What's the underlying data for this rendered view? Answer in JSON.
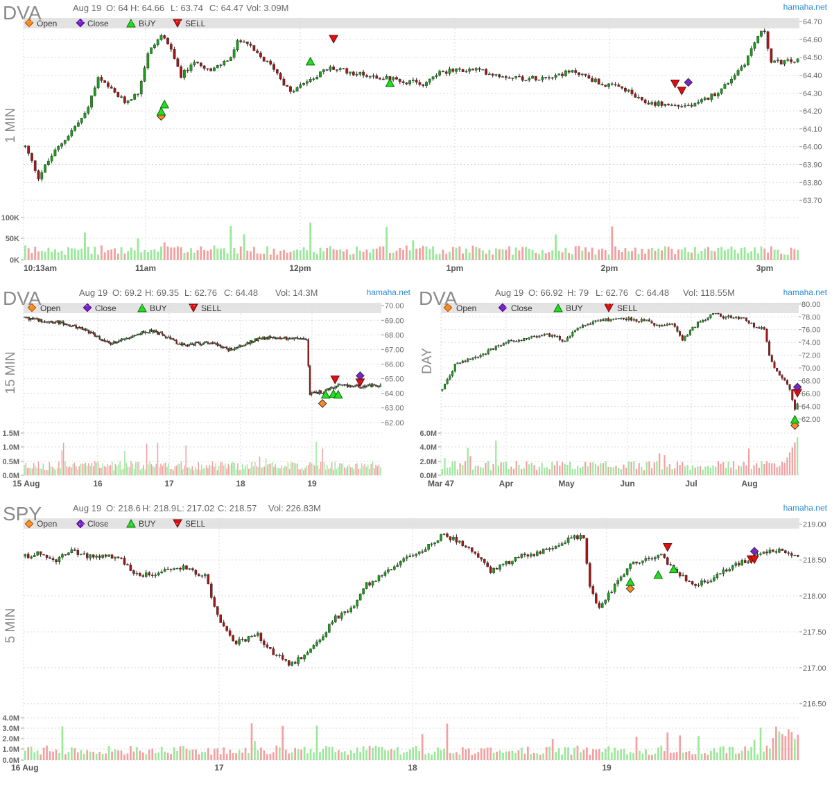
{
  "site": "hamaha.net",
  "legend": {
    "open": "Open",
    "close": "Close",
    "buy": "BUY",
    "sell": "SELL"
  },
  "colors": {
    "up": "#1a9e1a",
    "down": "#a01818",
    "vol_up": "#9be89b",
    "vol_down": "#f2a0a0",
    "buy": "#22dd22",
    "sell": "#e01010",
    "open_marker": "#ff8c1a",
    "close_marker": "#7b22cc"
  },
  "chart_data": [
    {
      "id": "dva_1min",
      "type": "candlestick",
      "symbol": "DVA",
      "timeframe": "1 MIN",
      "header": {
        "date": "Aug 19",
        "o": "O: 64",
        "h": "H: 64.66",
        "l": "L: 63.74",
        "c": "C: 64.47",
        "vol": "Vol: 3.09M"
      },
      "yticks": [
        "64.70",
        "64.60",
        "64.50",
        "64.40",
        "64.30",
        "64.20",
        "64.10",
        "64.00",
        "63.90",
        "63.80",
        "63.70"
      ],
      "ylim": [
        63.65,
        64.72
      ],
      "xticks": [
        "10:13am",
        "11am",
        "12pm",
        "1pm",
        "2pm",
        "3pm"
      ],
      "vticks": [
        "100K",
        "50K",
        "0K"
      ],
      "path": [
        [
          0,
          64.0
        ],
        [
          4,
          63.83
        ],
        [
          8,
          63.95
        ],
        [
          14,
          64.09
        ],
        [
          18,
          64.18
        ],
        [
          22,
          64.38
        ],
        [
          30,
          64.25
        ],
        [
          34,
          64.3
        ],
        [
          37,
          64.52
        ],
        [
          40,
          64.6
        ],
        [
          42,
          64.62
        ],
        [
          47,
          64.4
        ],
        [
          52,
          64.48
        ],
        [
          56,
          64.42
        ],
        [
          62,
          64.5
        ],
        [
          64,
          64.58
        ],
        [
          66,
          64.6
        ],
        [
          69,
          64.53
        ],
        [
          75,
          64.44
        ],
        [
          80,
          64.3
        ],
        [
          86,
          64.38
        ],
        [
          92,
          64.44
        ],
        [
          100,
          64.41
        ],
        [
          120,
          64.35
        ],
        [
          125,
          64.42
        ],
        [
          136,
          64.43
        ],
        [
          143,
          64.4
        ],
        [
          152,
          64.38
        ],
        [
          166,
          64.42
        ],
        [
          174,
          64.35
        ],
        [
          181,
          64.32
        ],
        [
          186,
          64.25
        ],
        [
          196,
          64.23
        ],
        [
          202,
          64.23
        ],
        [
          210,
          64.32
        ],
        [
          217,
          64.47
        ],
        [
          221,
          64.62
        ],
        [
          223,
          64.65
        ],
        [
          225,
          64.47
        ],
        [
          233,
          64.48
        ]
      ],
      "n": 234,
      "markers": [
        {
          "type": "open",
          "i": 41,
          "price": 64.17
        },
        {
          "type": "buy",
          "i": 41,
          "price": 64.2
        },
        {
          "type": "buy",
          "i": 42,
          "price": 64.24
        },
        {
          "type": "buy",
          "i": 86,
          "price": 64.48
        },
        {
          "type": "sell",
          "i": 93,
          "price": 64.6
        },
        {
          "type": "buy",
          "i": 110,
          "price": 64.36
        },
        {
          "type": "sell",
          "i": 196,
          "price": 64.35
        },
        {
          "type": "sell",
          "i": 198,
          "price": 64.31
        },
        {
          "type": "close",
          "i": 200,
          "price": 64.36
        }
      ]
    },
    {
      "id": "dva_15min",
      "type": "candlestick",
      "symbol": "DVA",
      "timeframe": "15 MIN",
      "header": {
        "date": "Aug 19",
        "o": "O: 69.2",
        "h": "H: 69.35",
        "l": "L: 62.76",
        "c": "C: 64.48",
        "vol": "Vol: 14.3M"
      },
      "yticks": [
        "70.00",
        "69.00",
        "68.00",
        "67.00",
        "66.00",
        "65.00",
        "64.00",
        "63.00",
        "62.00"
      ],
      "ylim": [
        61.8,
        70.2
      ],
      "xticks": [
        "15 Aug",
        "16",
        "17",
        "18",
        "19"
      ],
      "vticks": [
        "1.5M",
        "1.0M",
        "0.5M",
        "0.0M"
      ],
      "path": [
        [
          0,
          69.2
        ],
        [
          10,
          69.0
        ],
        [
          20,
          68.9
        ],
        [
          40,
          68.3
        ],
        [
          50,
          67.6
        ],
        [
          55,
          67.4
        ],
        [
          70,
          68.0
        ],
        [
          80,
          68.3
        ],
        [
          88,
          68.0
        ],
        [
          100,
          67.3
        ],
        [
          120,
          67.5
        ],
        [
          130,
          67.0
        ],
        [
          140,
          67.3
        ],
        [
          150,
          67.8
        ],
        [
          165,
          67.8
        ],
        [
          180,
          67.7
        ],
        [
          182,
          64.0
        ],
        [
          190,
          64.1
        ],
        [
          200,
          64.5
        ],
        [
          220,
          64.5
        ],
        [
          227,
          64.5
        ]
      ],
      "n": 228,
      "gap_after": 181,
      "markers": [
        {
          "type": "open",
          "i": 190,
          "price": 63.3
        },
        {
          "type": "buy",
          "i": 192,
          "price": 63.95
        },
        {
          "type": "buy",
          "i": 197,
          "price": 64.0
        },
        {
          "type": "buy",
          "i": 200,
          "price": 63.95
        },
        {
          "type": "sell",
          "i": 198,
          "price": 64.9
        },
        {
          "type": "sell",
          "i": 214,
          "price": 64.7
        },
        {
          "type": "close",
          "i": 214,
          "price": 65.2
        }
      ]
    },
    {
      "id": "dva_day",
      "type": "candlestick",
      "symbol": "DVA",
      "timeframe": "DAY",
      "header": {
        "date": "Aug 19",
        "o": "O: 66.92",
        "h": "H: 79",
        "l": "L: 62.76",
        "c": "C: 64.48",
        "vol": "Vol: 118.55M"
      },
      "yticks": [
        "80.00",
        "78.00",
        "76.00",
        "74.00",
        "72.00",
        "70.00",
        "68.00",
        "66.00",
        "64.00",
        "62.00"
      ],
      "ylim": [
        61.0,
        80.2
      ],
      "xticks": [
        "Mar 47",
        "Apr",
        "May",
        "Jun",
        "Jul",
        "Aug"
      ],
      "vticks": [
        "6.0M",
        "4.0M",
        "2.0M",
        "0.0M"
      ],
      "path": [
        [
          0,
          66.5
        ],
        [
          5,
          70.5
        ],
        [
          15,
          72.0
        ],
        [
          25,
          74.0
        ],
        [
          40,
          75.2
        ],
        [
          45,
          75.0
        ],
        [
          48,
          74.0
        ],
        [
          52,
          76.0
        ],
        [
          60,
          77.3
        ],
        [
          70,
          77.8
        ],
        [
          80,
          77.3
        ],
        [
          85,
          76.5
        ],
        [
          90,
          76.8
        ],
        [
          94,
          74.5
        ],
        [
          100,
          77.0
        ],
        [
          106,
          78.5
        ],
        [
          110,
          78.0
        ],
        [
          118,
          77.8
        ],
        [
          122,
          76.5
        ],
        [
          126,
          76.3
        ],
        [
          128,
          72.0
        ],
        [
          130,
          70.0
        ],
        [
          134,
          68.0
        ],
        [
          136,
          66.8
        ],
        [
          138,
          63.5
        ],
        [
          139,
          64.5
        ]
      ],
      "n": 140,
      "markers": [
        {
          "type": "open",
          "i": 138,
          "price": 61.0
        },
        {
          "type": "buy",
          "i": 138,
          "price": 62.0
        },
        {
          "type": "sell",
          "i": 139,
          "price": 66.0
        },
        {
          "type": "close",
          "i": 139,
          "price": 67.0
        }
      ]
    },
    {
      "id": "spy_5min",
      "type": "candlestick",
      "symbol": "SPY",
      "timeframe": "5 MIN",
      "header": {
        "date": "Aug 19",
        "o": "O: 218.6",
        "h": "H: 218.9",
        "l": "L: 217.02",
        "c": "C: 218.57",
        "vol": "Vol: 226.83M"
      },
      "yticks": [
        "219.00",
        "218.50",
        "218.00",
        "217.50",
        "217.00",
        "216.50"
      ],
      "ylim": [
        216.42,
        219.08
      ],
      "xticks": [
        "16 Aug",
        "17",
        "18",
        "19"
      ],
      "vticks": [
        "4.0M",
        "3.0M",
        "2.0M",
        "1.0M",
        "0.0M"
      ],
      "path": [
        [
          0,
          218.55
        ],
        [
          5,
          218.6
        ],
        [
          10,
          218.5
        ],
        [
          15,
          218.62
        ],
        [
          20,
          218.55
        ],
        [
          30,
          218.55
        ],
        [
          35,
          218.3
        ],
        [
          40,
          218.3
        ],
        [
          45,
          218.35
        ],
        [
          50,
          218.4
        ],
        [
          58,
          218.28
        ],
        [
          60,
          218.0
        ],
        [
          63,
          217.6
        ],
        [
          68,
          217.35
        ],
        [
          75,
          217.45
        ],
        [
          80,
          217.2
        ],
        [
          85,
          217.05
        ],
        [
          90,
          217.15
        ],
        [
          95,
          217.4
        ],
        [
          100,
          217.7
        ],
        [
          105,
          217.8
        ],
        [
          110,
          218.15
        ],
        [
          115,
          218.3
        ],
        [
          120,
          218.45
        ],
        [
          125,
          218.55
        ],
        [
          130,
          218.7
        ],
        [
          135,
          218.85
        ],
        [
          140,
          218.75
        ],
        [
          145,
          218.6
        ],
        [
          150,
          218.35
        ],
        [
          155,
          218.45
        ],
        [
          160,
          218.55
        ],
        [
          165,
          218.6
        ],
        [
          170,
          218.65
        ],
        [
          175,
          218.8
        ],
        [
          180,
          218.82
        ],
        [
          182,
          218.1
        ],
        [
          185,
          217.85
        ],
        [
          190,
          218.15
        ],
        [
          195,
          218.45
        ],
        [
          200,
          218.5
        ],
        [
          205,
          218.55
        ],
        [
          210,
          218.35
        ],
        [
          215,
          218.15
        ],
        [
          220,
          218.2
        ],
        [
          225,
          218.35
        ],
        [
          230,
          218.45
        ],
        [
          235,
          218.55
        ],
        [
          240,
          218.65
        ],
        [
          245,
          218.6
        ],
        [
          249,
          218.57
        ]
      ],
      "n": 250,
      "markers": [
        {
          "type": "buy",
          "i": 195,
          "price": 218.2
        },
        {
          "type": "open",
          "i": 195,
          "price": 218.1
        },
        {
          "type": "buy",
          "i": 204,
          "price": 218.3
        },
        {
          "type": "sell",
          "i": 207,
          "price": 218.67
        },
        {
          "type": "buy",
          "i": 209,
          "price": 218.38
        },
        {
          "type": "sell",
          "i": 234,
          "price": 218.5
        },
        {
          "type": "sell",
          "i": 235,
          "price": 218.5
        },
        {
          "type": "close",
          "i": 235,
          "price": 218.62
        }
      ]
    }
  ]
}
